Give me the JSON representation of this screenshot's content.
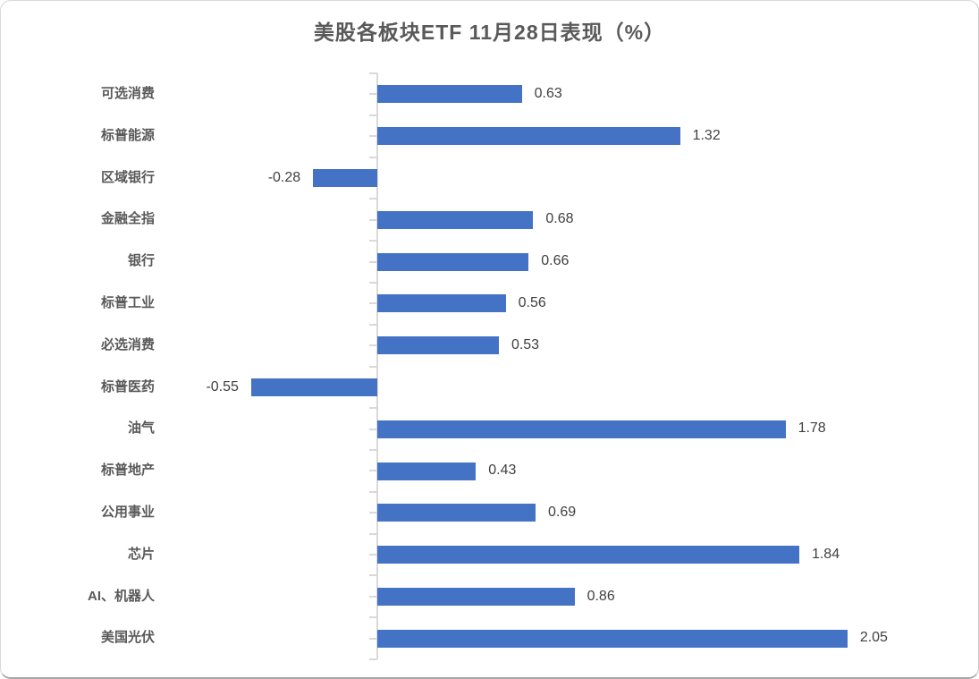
{
  "title": "美股各板块ETF 11月28日表现（%）",
  "chart_data": {
    "type": "bar",
    "orientation": "horizontal",
    "title": "美股各板块ETF 11月28日表现（%）",
    "xlabel": "",
    "ylabel": "",
    "categories": [
      "可选消费",
      "标普能源",
      "区域银行",
      "金融全指",
      "银行",
      "标普工业",
      "必选消费",
      "标普医药",
      "油气",
      "标普地产",
      "公用事业",
      "芯片",
      "AI、机器人",
      "美国光伏"
    ],
    "values": [
      0.63,
      1.32,
      -0.28,
      0.68,
      0.66,
      0.56,
      0.53,
      -0.55,
      1.78,
      0.43,
      0.69,
      1.84,
      0.86,
      2.05
    ],
    "data_labels": [
      "0.63",
      "1.32",
      "-0.28",
      "0.68",
      "0.66",
      "0.56",
      "0.53",
      "-0.55",
      "1.78",
      "0.43",
      "0.69",
      "1.84",
      "0.86",
      "2.05"
    ],
    "xlim": [
      -1.0,
      2.6
    ],
    "grid": false,
    "legend": false,
    "value_labels_shown": true
  },
  "colors": {
    "bar": "#4472C4",
    "axis": "#D9D9D9",
    "title_text": "#595959",
    "category_text": "#595959",
    "value_text": "#3F3F3F",
    "frame_border": "#D9D9D9"
  }
}
